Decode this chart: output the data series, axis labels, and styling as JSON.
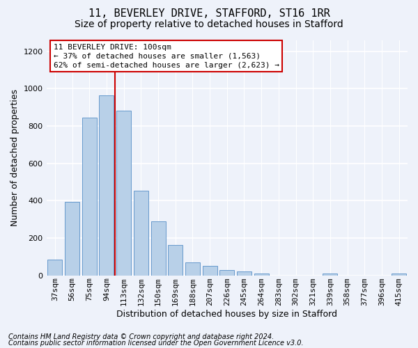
{
  "title_line1": "11, BEVERLEY DRIVE, STAFFORD, ST16 1RR",
  "title_line2": "Size of property relative to detached houses in Stafford",
  "xlabel": "Distribution of detached houses by size in Stafford",
  "ylabel": "Number of detached properties",
  "categories": [
    "37sqm",
    "56sqm",
    "75sqm",
    "94sqm",
    "113sqm",
    "132sqm",
    "150sqm",
    "169sqm",
    "188sqm",
    "207sqm",
    "226sqm",
    "245sqm",
    "264sqm",
    "283sqm",
    "302sqm",
    "321sqm",
    "339sqm",
    "358sqm",
    "377sqm",
    "396sqm",
    "415sqm"
  ],
  "values": [
    85,
    395,
    845,
    965,
    880,
    455,
    290,
    162,
    68,
    50,
    30,
    22,
    10,
    0,
    0,
    0,
    10,
    0,
    0,
    0,
    10
  ],
  "bar_color": "#b8d0e8",
  "bar_edge_color": "#6699cc",
  "vline_x": 3.5,
  "vline_color": "#cc0000",
  "annotation_label": "11 BEVERLEY DRIVE: 100sqm",
  "annotation_line1": "← 37% of detached houses are smaller (1,563)",
  "annotation_line2": "62% of semi-detached houses are larger (2,623) →",
  "ylim": [
    0,
    1260
  ],
  "yticks": [
    0,
    200,
    400,
    600,
    800,
    1000,
    1200
  ],
  "footer_line1": "Contains HM Land Registry data © Crown copyright and database right 2024.",
  "footer_line2": "Contains public sector information licensed under the Open Government Licence v3.0.",
  "bg_color": "#eef2fa",
  "plot_bg_color": "#eef2fa",
  "grid_color": "#ffffff",
  "annotation_box_facecolor": "#ffffff",
  "annotation_box_edgecolor": "#cc0000",
  "title_fontsize": 11,
  "subtitle_fontsize": 10,
  "ylabel_fontsize": 9,
  "xlabel_fontsize": 9,
  "tick_fontsize": 8,
  "annotation_fontsize": 8,
  "footer_fontsize": 7
}
